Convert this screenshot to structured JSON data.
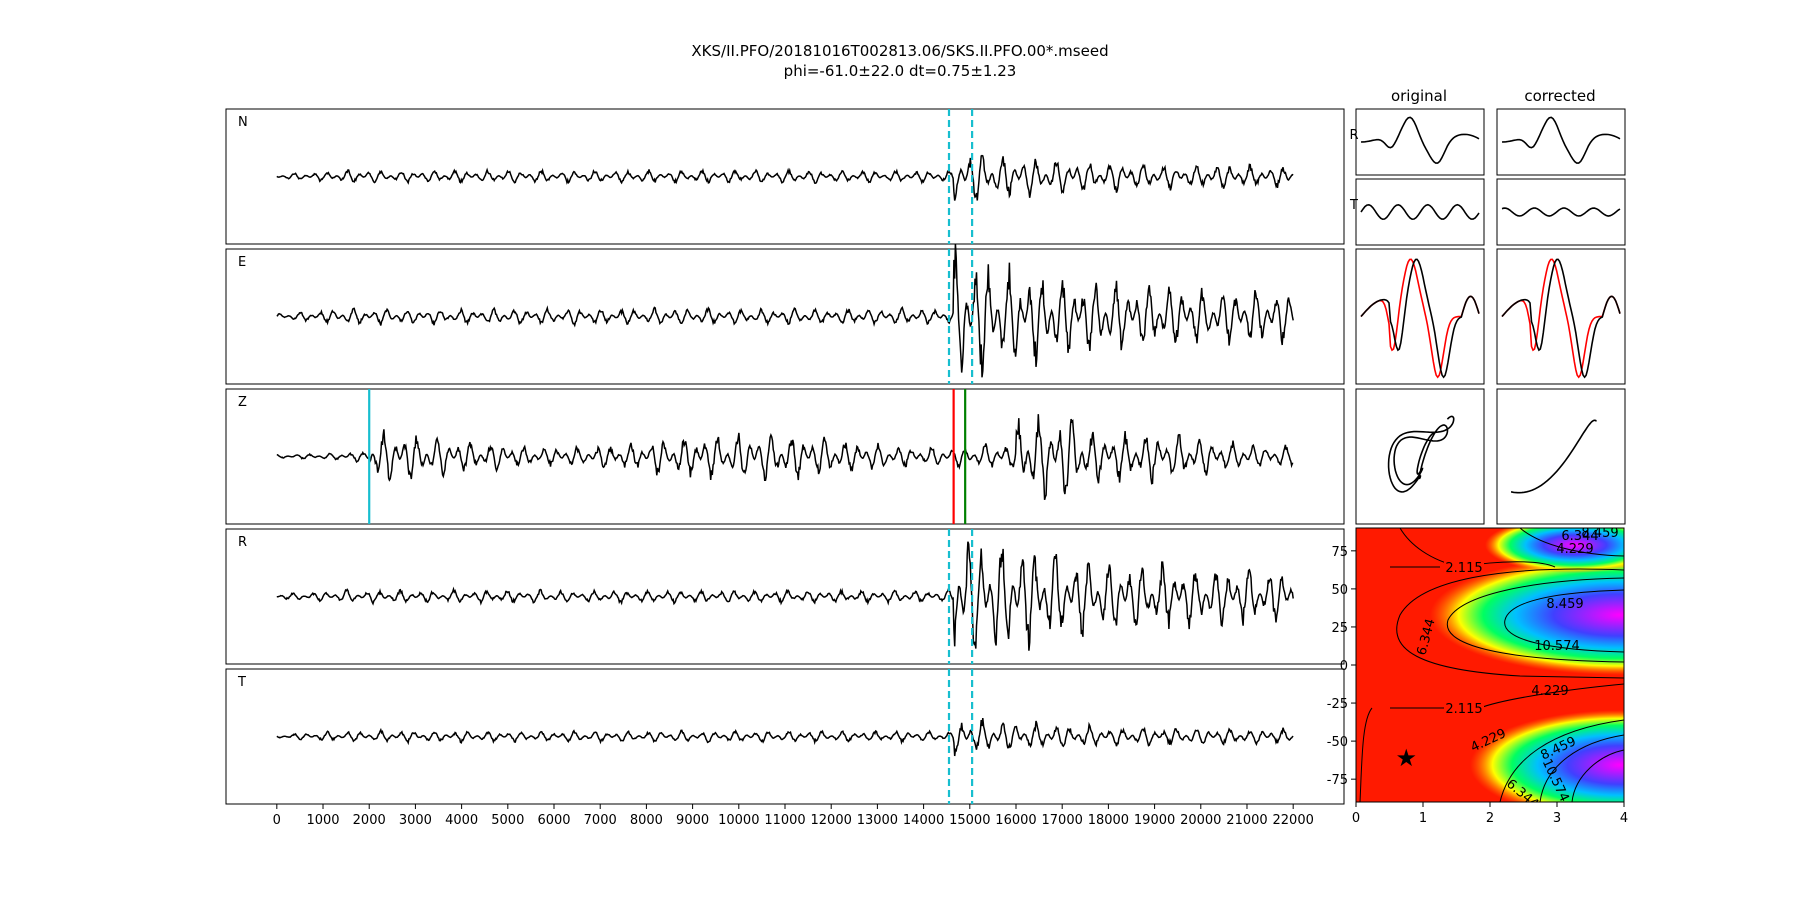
{
  "chart_data": {
    "type": "line",
    "title": "XKS/II.PFO/20181016T002813.06/SKS.II.PFO.00*.mseed",
    "subtitle": "phi=-61.0±22.0 dt=0.75±1.23",
    "traces": {
      "type": "line",
      "xlim": [
        -1100,
        23100
      ],
      "x_ticks": [
        0,
        1000,
        2000,
        3000,
        4000,
        5000,
        6000,
        7000,
        8000,
        9000,
        10000,
        11000,
        12000,
        13000,
        14000,
        15000,
        16000,
        17000,
        18000,
        19000,
        20000,
        21000,
        22000
      ],
      "x_ticklabels": [
        "0",
        "1000",
        "2000",
        "3000",
        "4000",
        "5000",
        "6000",
        "7000",
        "8000",
        "9000",
        "10000",
        "11000",
        "12000",
        "13000",
        "14000",
        "15000",
        "16000",
        "17000",
        "18000",
        "19000",
        "20000",
        "21000",
        "22000"
      ],
      "window_lines": {
        "start": 14550,
        "end": 15050,
        "color": "#17becf"
      },
      "picks": [
        {
          "x": 2000,
          "color": "#17becf"
        },
        {
          "x": 14650,
          "color": "#ff0000"
        },
        {
          "x": 14900,
          "color": "#008000"
        }
      ],
      "series": [
        {
          "name": "N",
          "signal_x": 14650,
          "pre_amp": 0.08,
          "post_amp": 0.36
        },
        {
          "name": "E",
          "signal_x": 14650,
          "pre_amp": 0.1,
          "post_amp": 0.85
        },
        {
          "name": "Z",
          "signal_x": 2000,
          "pre_amp": 0.05,
          "post_amp": 0.45
        },
        {
          "name": "R",
          "signal_x": 14650,
          "pre_amp": 0.08,
          "post_amp": 0.9
        },
        {
          "name": "T",
          "signal_x": 14650,
          "pre_amp": 0.07,
          "post_amp": 0.25
        }
      ]
    },
    "particle_motion": {
      "columns": [
        "original",
        "corrected"
      ],
      "row_labels": [
        "R",
        "T"
      ]
    },
    "error_surface": {
      "type": "heatmap",
      "xlim": [
        0,
        4
      ],
      "ylim": [
        -90,
        90
      ],
      "x_ticks": [
        0,
        1,
        2,
        3,
        4
      ],
      "y_ticks": [
        75,
        50,
        25,
        0,
        -25,
        -50,
        -75
      ],
      "contour_labels": [
        "2.115",
        "4.229",
        "6.344",
        "8.459",
        "10.574"
      ],
      "best_fit": {
        "dt": 0.75,
        "phi": -61.0
      }
    }
  }
}
